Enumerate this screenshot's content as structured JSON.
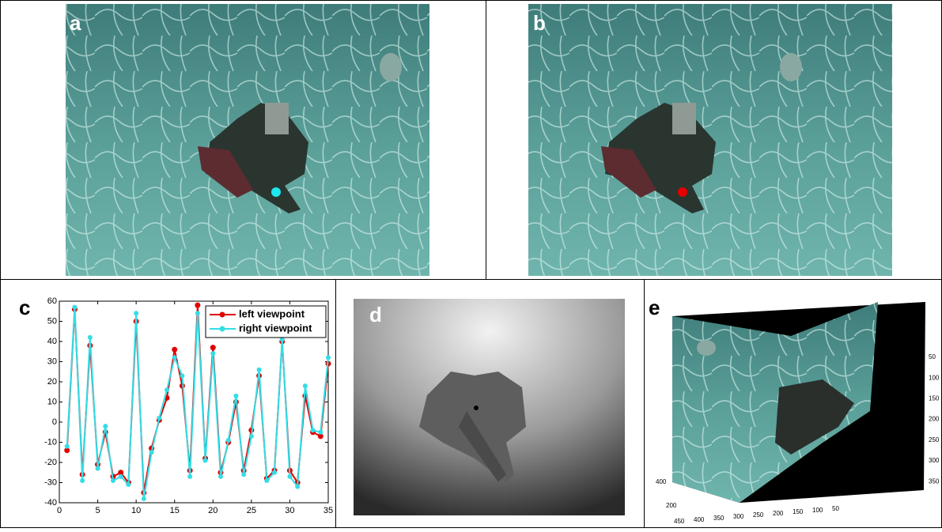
{
  "panels": {
    "a": "a",
    "b": "b",
    "c": "c",
    "d": "d",
    "e": "e"
  },
  "panel_e": {
    "z_ticks": [
      50,
      100,
      150,
      200,
      250,
      300,
      350
    ],
    "y_ticks": [
      400,
      200
    ],
    "x_ticks": [
      450,
      400,
      350,
      300,
      250,
      200,
      150,
      100,
      50
    ]
  },
  "chart_data": {
    "type": "line",
    "x": [
      1,
      2,
      3,
      4,
      5,
      6,
      7,
      8,
      9,
      10,
      11,
      12,
      13,
      14,
      15,
      16,
      17,
      18,
      19,
      20,
      21,
      22,
      23,
      24,
      25,
      26,
      27,
      28,
      29,
      30,
      31,
      32,
      33,
      34,
      35
    ],
    "series": [
      {
        "name": "left viewpoint",
        "color": "#e00000",
        "values": [
          -14,
          56,
          -26,
          38,
          -21,
          -5,
          -27,
          -25,
          -30,
          50,
          -35,
          -13,
          1,
          12,
          36,
          18,
          -24,
          58,
          -18,
          37,
          -25,
          -10,
          10,
          -24,
          -4,
          23,
          -28,
          -24,
          40,
          -24,
          -30,
          13,
          -5,
          -7,
          29
        ]
      },
      {
        "name": "right viewpoint",
        "color": "#33dde6",
        "values": [
          -12,
          57,
          -29,
          42,
          -23,
          -2,
          -29,
          -27,
          -31,
          54,
          -38,
          -15,
          2,
          16,
          32,
          23,
          -27,
          54,
          -19,
          34,
          -27,
          -9,
          13,
          -26,
          -7,
          26,
          -29,
          -25,
          41,
          -27,
          -32,
          18,
          -4,
          -5,
          32
        ]
      }
    ],
    "xlim": [
      0,
      35
    ],
    "ylim": [
      -40,
      60
    ],
    "xticks": [
      0,
      5,
      10,
      15,
      20,
      25,
      30,
      35
    ],
    "yticks": [
      -40,
      -30,
      -20,
      -10,
      0,
      10,
      20,
      30,
      40,
      50,
      60
    ],
    "legend": "upper right"
  }
}
